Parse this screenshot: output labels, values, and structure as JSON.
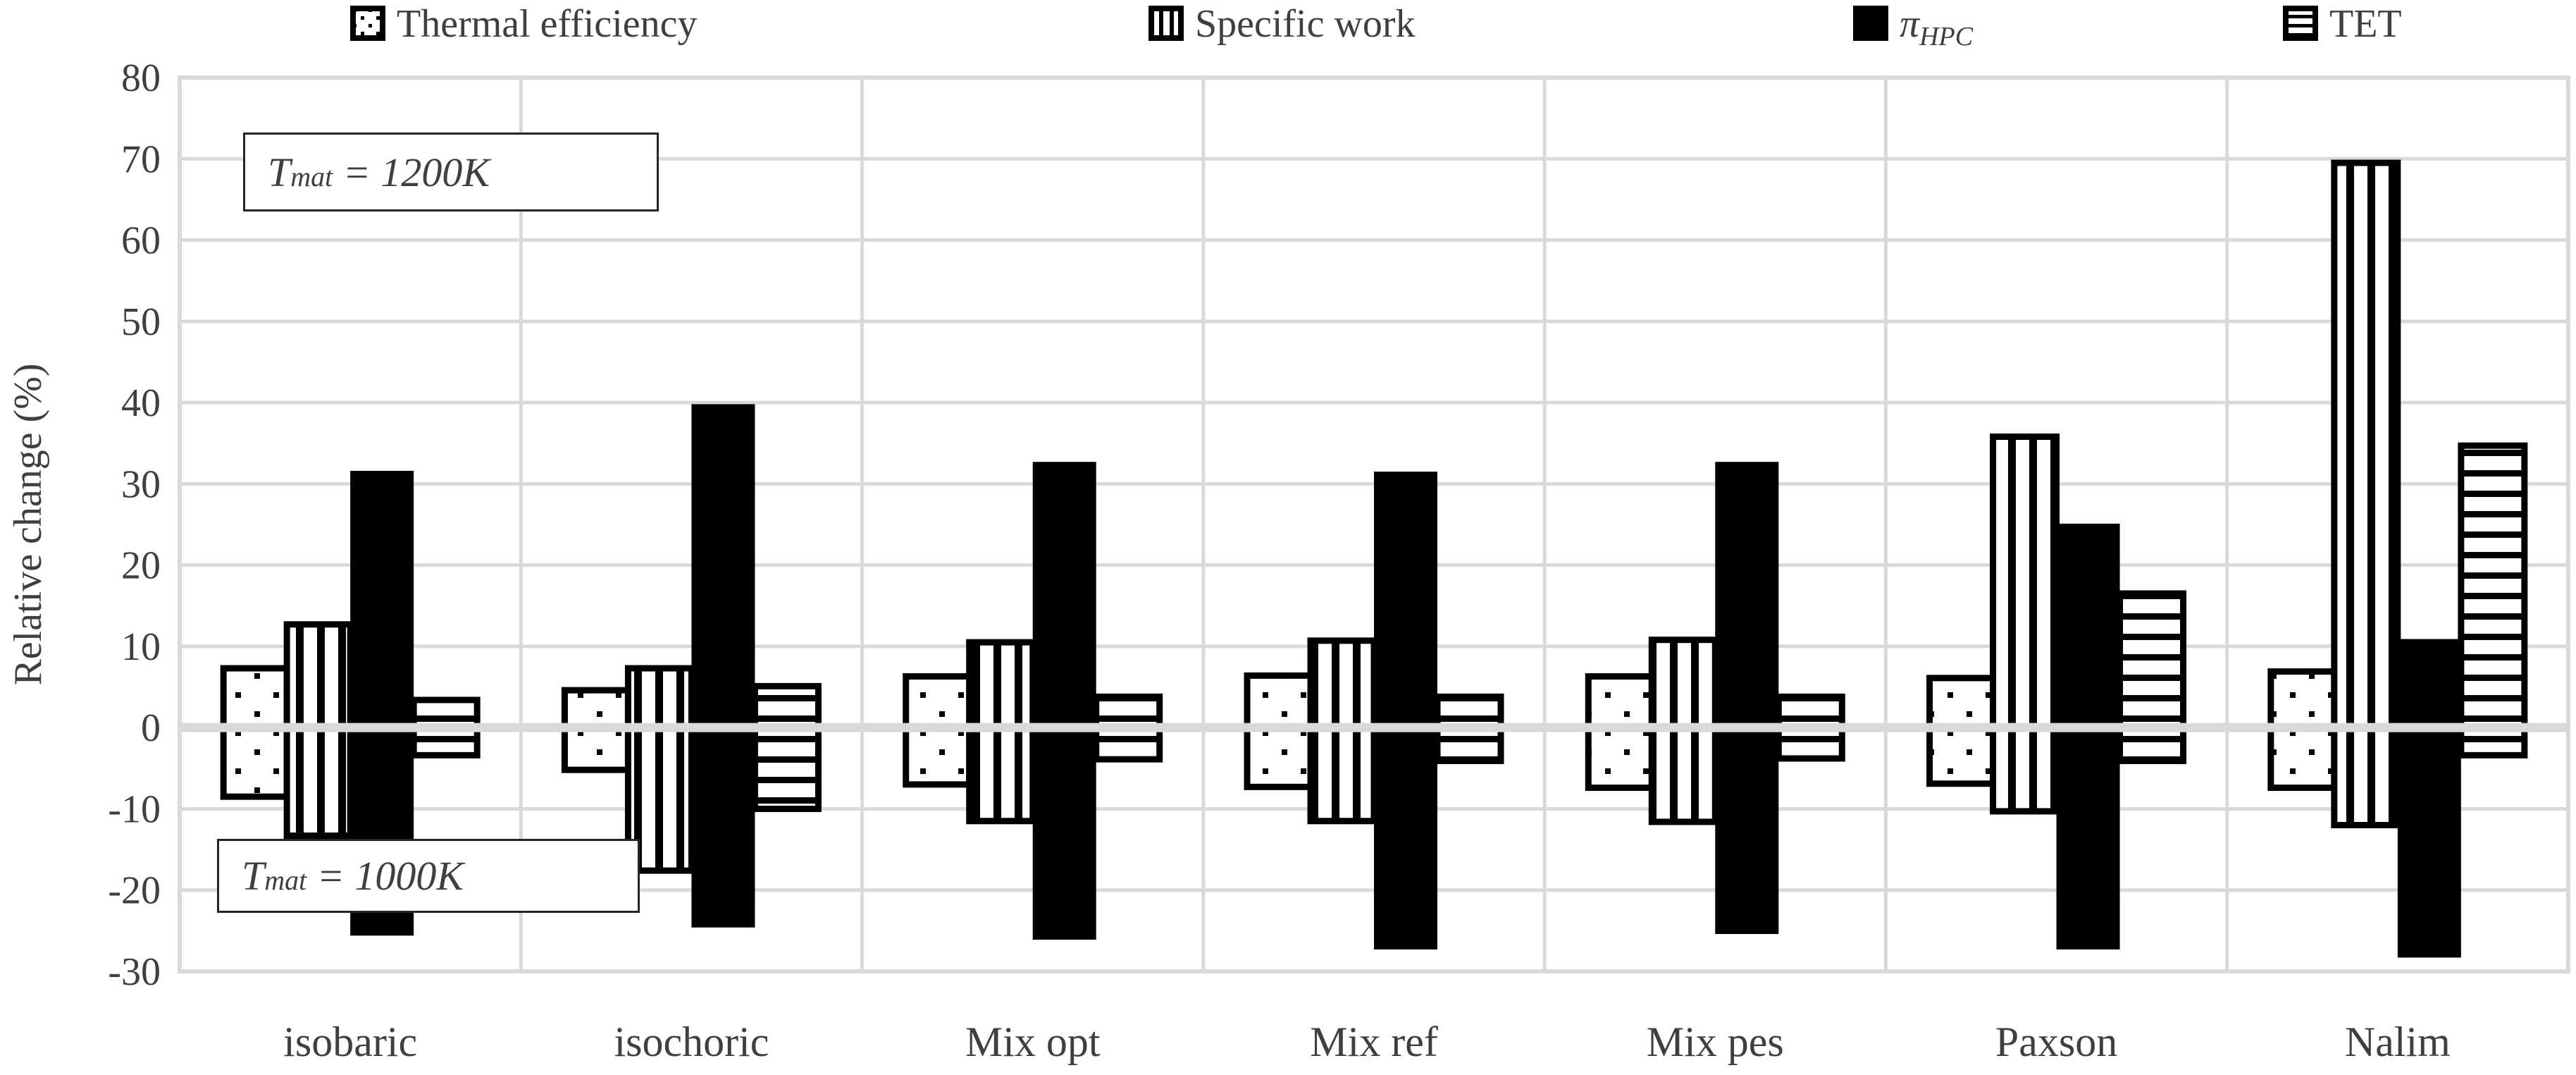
{
  "figure": {
    "y_axis_title": "Relative change (%)",
    "background_color": "#ffffff",
    "gridline_color": "#d9d9d9",
    "text_color": "#3f3f3f",
    "bar_color": "#000000"
  },
  "legend": [
    {
      "label": "Thermal efficiency",
      "pattern": "dots"
    },
    {
      "label": "Specific work",
      "pattern": "vstripes"
    },
    {
      "label_pi": "π",
      "label_sub": "HPC",
      "pattern": "solid"
    },
    {
      "label": "TET",
      "pattern": "hstripes"
    }
  ],
  "annotations": [
    {
      "base": "T",
      "sub": "mat",
      "rest": " = 1200K",
      "applies_to": "positive bars"
    },
    {
      "base": "T",
      "sub": "mat",
      "rest": " = 1000K",
      "applies_to": "negative bars"
    }
  ],
  "chart_data": {
    "type": "bar",
    "title": "",
    "xlabel": "",
    "ylabel": "Relative change (%)",
    "ylim": [
      -30,
      80
    ],
    "ytick_interval": 10,
    "yticks": [
      80,
      70,
      60,
      50,
      40,
      30,
      20,
      10,
      0,
      -10,
      -20,
      -30
    ],
    "ytick_labels": [
      "80",
      "70",
      "60",
      "50",
      "40",
      "30",
      "20",
      "10",
      "0",
      "-10",
      "-20",
      "-30"
    ],
    "grid": true,
    "legend_position": "top",
    "categories": [
      "isobaric",
      "isochoric",
      "Mix opt",
      "Mix ref",
      "Mix pes",
      "Paxson",
      "Nalim"
    ],
    "series": [
      {
        "name": "Thermal efficiency",
        "pattern": "dots",
        "values_Tmat_1200K": [
          7.3,
          4.6,
          6.3,
          6.4,
          6.3,
          6.1,
          6.9
        ],
        "values_Tmat_1000K": [
          -8.5,
          -5.2,
          -7.0,
          -7.3,
          -7.4,
          -6.9,
          -7.4
        ]
      },
      {
        "name": "Specific work",
        "pattern": "vstripes",
        "values_Tmat_1200K": [
          12.7,
          7.3,
          10.5,
          10.7,
          10.8,
          35.8,
          69.5
        ],
        "values_Tmat_1000K": [
          -13.3,
          -17.6,
          -11.5,
          -11.5,
          -11.6,
          -10.3,
          -12.0
        ]
      },
      {
        "name": "π_HPC",
        "pattern": "solid",
        "values_Tmat_1200K": [
          31.6,
          39.8,
          32.7,
          31.5,
          32.7,
          25.1,
          10.9
        ],
        "values_Tmat_1000K": [
          -25.6,
          -24.6,
          -26.1,
          -27.3,
          -25.4,
          -27.3,
          -28.3
        ]
      },
      {
        "name": "TET",
        "pattern": "hstripes",
        "values_Tmat_1200K": [
          3.4,
          5.1,
          3.8,
          3.8,
          3.8,
          16.5,
          34.7
        ],
        "values_Tmat_1000K": [
          -3.4,
          -10.0,
          -3.9,
          -4.1,
          -3.8,
          -4.1,
          -3.4
        ]
      }
    ]
  }
}
